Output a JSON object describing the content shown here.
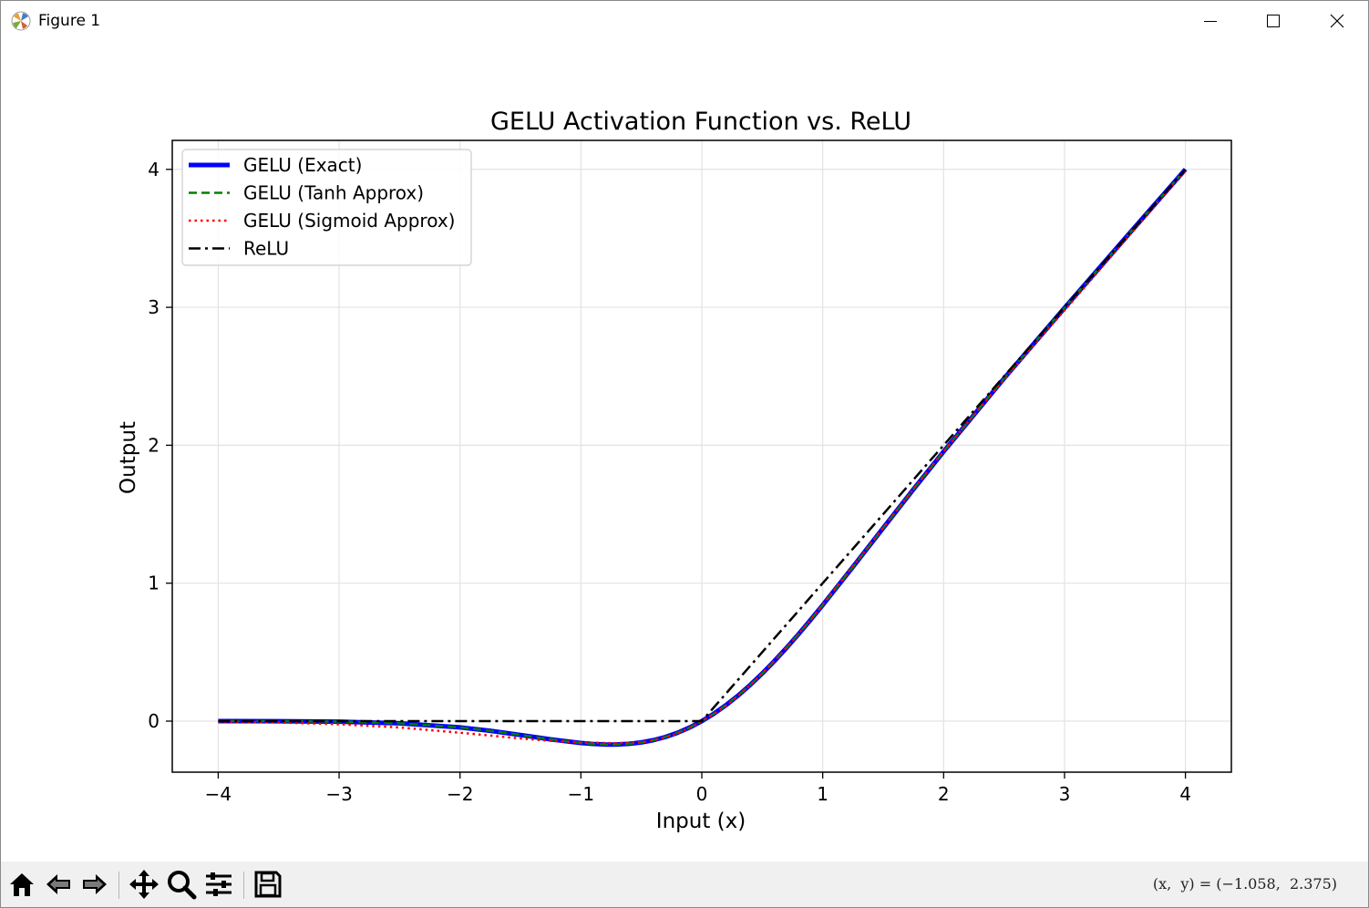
{
  "window": {
    "title": "Figure 1",
    "buttons": {
      "minimize": "minimize-icon",
      "maximize": "maximize-icon",
      "close": "close-icon"
    }
  },
  "chart_data": {
    "type": "line",
    "title": "GELU Activation Function vs. ReLU",
    "xlabel": "Input (x)",
    "ylabel": "Output",
    "xlim": [
      -4.38,
      4.38
    ],
    "ylim": [
      -0.37,
      4.21
    ],
    "xticks": [
      -4,
      -3,
      -2,
      -1,
      0,
      1,
      2,
      3,
      4
    ],
    "xtick_labels": [
      "−4",
      "−3",
      "−2",
      "−1",
      "0",
      "1",
      "2",
      "3",
      "4"
    ],
    "yticks": [
      0,
      1,
      2,
      3,
      4
    ],
    "ytick_labels": [
      "0",
      "1",
      "2",
      "3",
      "4"
    ],
    "grid": true,
    "legend_position": "upper left",
    "x": [
      -4,
      -3.5,
      -3,
      -2.5,
      -2,
      -1.75,
      -1.5,
      -1.25,
      -1,
      -0.9,
      -0.8,
      -0.75,
      -0.7,
      -0.6,
      -0.5,
      -0.4,
      -0.3,
      -0.2,
      -0.1,
      0,
      0.1,
      0.2,
      0.3,
      0.4,
      0.5,
      0.6,
      0.7,
      0.8,
      0.9,
      1,
      1.25,
      1.5,
      1.75,
      2,
      2.5,
      3,
      3.5,
      4
    ],
    "series": [
      {
        "name": "GELU (Exact)",
        "color": "#0000ff",
        "style": "solid",
        "values": [
          -0.0001,
          -0.0008,
          -0.004,
          -0.0155,
          -0.0455,
          -0.0702,
          -0.1002,
          -0.132,
          -0.1587,
          -0.1655,
          -0.1695,
          -0.17,
          -0.1695,
          -0.1646,
          -0.1543,
          -0.1378,
          -0.1146,
          -0.0841,
          -0.046,
          0,
          0.054,
          0.1159,
          0.1854,
          0.2622,
          0.3457,
          0.4354,
          0.5305,
          0.6305,
          0.7345,
          0.8413,
          1.118,
          1.3998,
          1.6798,
          1.9545,
          2.4845,
          2.996,
          3.4992,
          3.9999
        ]
      },
      {
        "name": "GELU (Tanh Approx)",
        "color": "#008000",
        "style": "dashed",
        "values": [
          -0.0001,
          -0.0008,
          -0.0036,
          -0.0155,
          -0.0454,
          -0.0702,
          -0.1004,
          -0.1323,
          -0.1588,
          -0.1655,
          -0.1695,
          -0.17,
          -0.1695,
          -0.1646,
          -0.1543,
          -0.1378,
          -0.1146,
          -0.0841,
          -0.046,
          0,
          0.054,
          0.1159,
          0.1854,
          0.2622,
          0.3457,
          0.4354,
          0.5305,
          0.6305,
          0.7345,
          0.8412,
          1.1177,
          1.3996,
          1.6798,
          1.9546,
          2.4845,
          2.9964,
          3.4992,
          3.9999
        ]
      },
      {
        "name": "GELU (Sigmoid Approx)",
        "color": "#ff0000",
        "style": "dotted",
        "values": [
          -0.0034,
          -0.0097,
          -0.0226,
          -0.0459,
          -0.084,
          -0.1045,
          -0.1256,
          -0.1431,
          -0.1542,
          -0.1571,
          -0.1588,
          -0.1591,
          -0.1589,
          -0.1572,
          -0.1536,
          -0.1387,
          -0.1174,
          -0.0888,
          -0.0483,
          0,
          0.0517,
          0.1112,
          0.1826,
          0.2613,
          0.3464,
          0.4366,
          0.532,
          0.6316,
          0.735,
          0.8458,
          1.122,
          1.4025,
          1.6822,
          1.956,
          2.4788,
          2.9774,
          3.4849,
          3.9889
        ]
      },
      {
        "name": "ReLU",
        "color": "#000000",
        "style": "dashdot",
        "values": [
          0,
          0,
          0,
          0,
          0,
          0,
          0,
          0,
          0,
          0,
          0,
          0,
          0,
          0,
          0,
          0,
          0,
          0,
          0,
          0,
          0.1,
          0.2,
          0.3,
          0.4,
          0.5,
          0.6,
          0.7,
          0.8,
          0.9,
          1,
          1.25,
          1.5,
          1.75,
          2,
          2.5,
          3,
          3.5,
          4
        ]
      }
    ]
  },
  "toolbar": {
    "buttons": [
      "home-icon",
      "back-icon",
      "forward-icon",
      "pan-icon",
      "zoom-icon",
      "configure-subplots-icon",
      "save-icon"
    ],
    "coords_readout": "(x,  y) = (−1.058,  2.375)"
  }
}
